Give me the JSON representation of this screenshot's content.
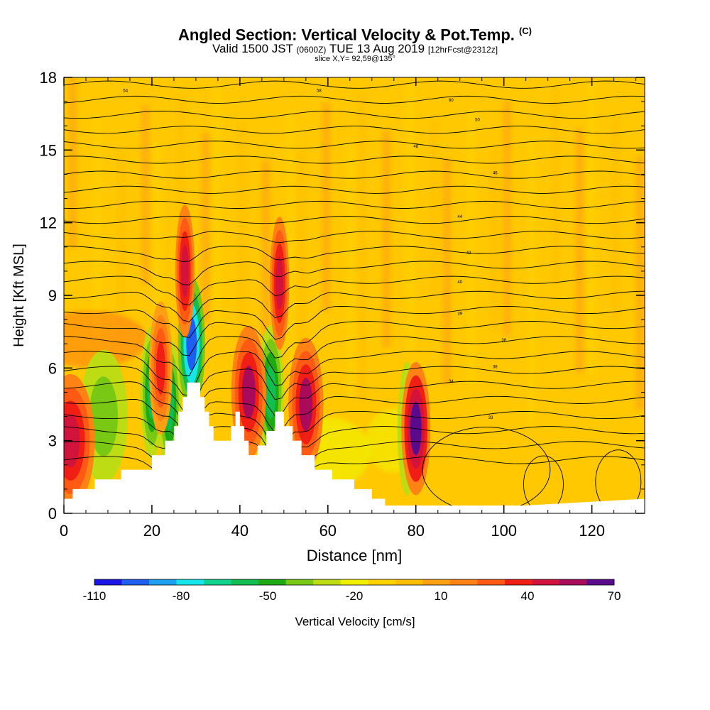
{
  "chart_data": {
    "type": "heatmap",
    "title": "Angled Section: Vertical Velocity & Pot.Temp.",
    "title_mark": "(C)",
    "subtitle_main": "Valid 1500 JST",
    "subtitle_utc": "(0600Z)",
    "subtitle_date": "TUE 13 Aug 2019",
    "subtitle_fcst": "[12hrFcst@2312z]",
    "slice_label": "slice X,Y= 92,59@135°",
    "xlabel": "Distance [nm]",
    "ylabel": "Height [Kft MSL]",
    "xlim": [
      0,
      132
    ],
    "ylim": [
      0,
      18
    ],
    "x_ticks": [
      "0",
      "20",
      "40",
      "60",
      "80",
      "100",
      "120"
    ],
    "y_ticks": [
      "0",
      "3",
      "6",
      "9",
      "12",
      "15",
      "18"
    ],
    "colorbar": {
      "label": "Vertical Velocity [cm/s]",
      "tick_labels": [
        "-110",
        "-80",
        "-50",
        "-20",
        "10",
        "40",
        "70"
      ],
      "colors": [
        "#1a14e6",
        "#1e5ef0",
        "#1ea0f0",
        "#16e6ea",
        "#10d28c",
        "#12be50",
        "#1eaa14",
        "#78c814",
        "#bedc14",
        "#f0f000",
        "#ffd200",
        "#ffbe00",
        "#ffa014",
        "#ff8214",
        "#ff5a14",
        "#f01e14",
        "#d2143c",
        "#aa0a5a",
        "#5a0a8c"
      ]
    },
    "background_color": "#ffc800",
    "terrain_profile": [
      [
        0,
        0.6
      ],
      [
        2,
        0.6
      ],
      [
        2,
        1
      ],
      [
        7,
        1
      ],
      [
        7,
        1.4
      ],
      [
        13,
        1.4
      ],
      [
        13,
        1.8
      ],
      [
        20,
        1.8
      ],
      [
        20,
        2.4
      ],
      [
        23,
        2.4
      ],
      [
        23,
        3
      ],
      [
        25,
        3
      ],
      [
        25,
        3.6
      ],
      [
        26,
        3.6
      ],
      [
        26,
        4.2
      ],
      [
        27,
        4.2
      ],
      [
        27,
        4.8
      ],
      [
        28,
        4.8
      ],
      [
        28,
        5.4
      ],
      [
        31,
        5.4
      ],
      [
        31,
        4.8
      ],
      [
        32,
        4.8
      ],
      [
        32,
        4.2
      ],
      [
        33,
        4.2
      ],
      [
        33,
        3.6
      ],
      [
        34,
        3.6
      ],
      [
        34,
        3
      ],
      [
        38,
        3
      ],
      [
        38,
        3.6
      ],
      [
        39,
        3.6
      ],
      [
        39,
        4.2
      ],
      [
        40,
        4.2
      ],
      [
        40,
        3.6
      ],
      [
        41,
        3.6
      ],
      [
        41,
        3
      ],
      [
        42,
        3
      ],
      [
        42,
        2.4
      ],
      [
        44,
        2.4
      ],
      [
        44,
        2.8
      ],
      [
        46,
        2.8
      ],
      [
        46,
        3.4
      ],
      [
        48,
        3.4
      ],
      [
        48,
        4.2
      ],
      [
        50,
        4.2
      ],
      [
        50,
        3.6
      ],
      [
        52,
        3.6
      ],
      [
        52,
        3
      ],
      [
        54,
        3
      ],
      [
        54,
        2.4
      ],
      [
        57,
        2.4
      ],
      [
        57,
        1.8
      ],
      [
        61,
        1.8
      ],
      [
        61,
        1.4
      ],
      [
        66,
        1.4
      ],
      [
        66,
        1
      ],
      [
        70,
        1
      ],
      [
        70,
        0.6
      ],
      [
        73,
        0.6
      ],
      [
        73,
        0
      ]
    ],
    "updrafts": [
      {
        "x": 1.5,
        "y": 3.0,
        "w": 2.5,
        "value": 50
      },
      {
        "x": 22,
        "y": 6.0,
        "w": 1.2,
        "value": 40
      },
      {
        "x": 27.5,
        "y": 10.0,
        "w": 1.0,
        "value": 55
      },
      {
        "x": 42,
        "y": 5.0,
        "w": 1.8,
        "value": 60
      },
      {
        "x": 49,
        "y": 9.5,
        "w": 1.0,
        "value": 55
      },
      {
        "x": 55,
        "y": 4.5,
        "w": 1.8,
        "value": 60
      },
      {
        "x": 80,
        "y": 3.5,
        "w": 1.5,
        "value": 70
      }
    ],
    "downdrafts": [
      {
        "x": 9,
        "y": 4.0,
        "w": 2.5,
        "value": -40
      },
      {
        "x": 20,
        "y": 5.0,
        "w": 1.2,
        "value": -60
      },
      {
        "x": 24,
        "y": 4.5,
        "w": 1.2,
        "value": -60
      },
      {
        "x": 29,
        "y": 7.0,
        "w": 1.4,
        "value": -100
      },
      {
        "x": 47,
        "y": 5.0,
        "w": 1.4,
        "value": -60
      },
      {
        "x": 78,
        "y": 3.5,
        "w": 1.0,
        "value": -40
      }
    ],
    "theta_labels": [
      "54",
      "58",
      "60",
      "50",
      "48",
      "46",
      "44",
      "42",
      "40",
      "39",
      "38",
      "36",
      "34",
      "33"
    ]
  }
}
